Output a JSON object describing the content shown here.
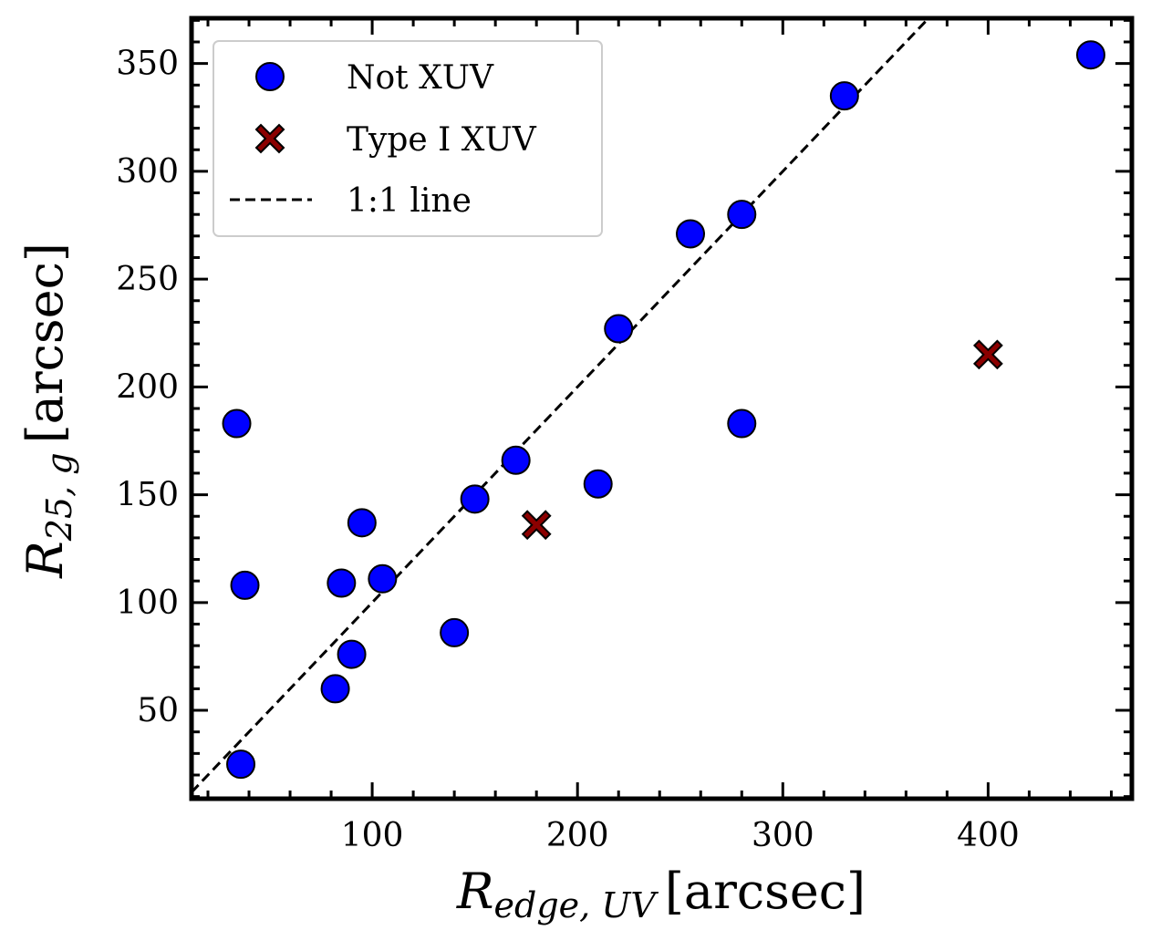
{
  "chart_data": {
    "type": "scatter",
    "title": "",
    "xlabel": {
      "main": "R",
      "subscript": "edge, UV",
      "unit": "[arcsec]"
    },
    "ylabel": {
      "main": "R",
      "subscript": "25, g",
      "unit": "[arcsec]"
    },
    "xlim": [
      12,
      470
    ],
    "ylim": [
      9,
      371
    ],
    "xticks": [
      100,
      200,
      300,
      400
    ],
    "yticks": [
      50,
      100,
      150,
      200,
      250,
      300,
      350
    ],
    "xtick_labels": [
      "100",
      "200",
      "300",
      "400"
    ],
    "ytick_labels": [
      "50",
      "100",
      "150",
      "200",
      "250",
      "300",
      "350"
    ],
    "x_minor_step": 20,
    "y_minor_step": 10,
    "grid": false,
    "legend_position": "top-left",
    "series": [
      {
        "name": "Not XUV",
        "marker": "circle",
        "color": "#0000ff",
        "edge_color": "#000000",
        "points": [
          [
            34,
            183
          ],
          [
            36,
            25
          ],
          [
            38,
            108
          ],
          [
            82,
            60
          ],
          [
            85,
            109
          ],
          [
            90,
            76
          ],
          [
            95,
            137
          ],
          [
            105,
            111
          ],
          [
            140,
            86
          ],
          [
            150,
            148
          ],
          [
            170,
            166
          ],
          [
            210,
            155
          ],
          [
            220,
            227
          ],
          [
            255,
            271
          ],
          [
            280,
            280
          ],
          [
            280,
            183
          ],
          [
            330,
            335
          ],
          [
            450,
            354
          ]
        ]
      },
      {
        "name": "Type I XUV",
        "marker": "x-filled",
        "color": "#8b0000",
        "edge_color": "#000000",
        "points": [
          [
            180,
            136
          ],
          [
            400,
            215
          ]
        ]
      }
    ],
    "reference_line": {
      "name": "1:1 line",
      "style": "dashed",
      "color": "#000000",
      "slope": 1,
      "intercept": 0
    }
  }
}
